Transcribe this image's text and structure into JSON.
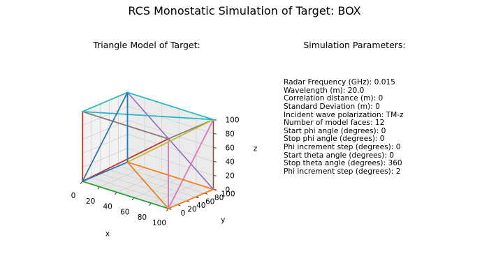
{
  "figure_title": "RCS Monostatic Simulation of Target: BOX",
  "model_panel": {
    "title": "Triangle Model of Target:"
  },
  "params_panel": {
    "title": "Simulation Parameters:",
    "lines": [
      "Radar Frequency (GHz): 0.015",
      "Wavelength (m): 20.0",
      "Correlation distance (m): 0",
      "Standard Deviation (m): 0",
      "Incident wave polarization: TM-z",
      "Number of model faces: 12",
      "Start phi angle (degrees): 0",
      "Stop phi angle (degrees): 0",
      "Phi increment step (degrees): 0",
      "Start theta angle (degrees): 0",
      "Stop theta angle (degrees): 360",
      "Phi increment step (degrees): 2"
    ]
  },
  "chart_data": {
    "type": "line3d",
    "xlabel": "x",
    "ylabel": "y",
    "zlabel": "z",
    "xlim": [
      0,
      100
    ],
    "ylim": [
      0,
      100
    ],
    "zlim": [
      0,
      100
    ],
    "xticks": [
      0,
      20,
      40,
      60,
      80,
      100
    ],
    "yticks": [
      0,
      20,
      40,
      60,
      80,
      100
    ],
    "zticks": [
      0,
      20,
      40,
      60,
      80,
      100
    ],
    "grid": true,
    "panes": "light-gray",
    "colors": [
      "#1f77b4",
      "#ff7f0e",
      "#2ca02c",
      "#d62728",
      "#9467bd",
      "#8c564b",
      "#e377c2",
      "#7f7f7f",
      "#bcbd22",
      "#17becf"
    ],
    "triangles": [
      [
        [
          0,
          0,
          0
        ],
        [
          100,
          0,
          0
        ],
        [
          0,
          100,
          0
        ]
      ],
      [
        [
          0,
          100,
          100
        ],
        [
          0,
          0,
          100
        ],
        [
          0,
          0,
          0
        ]
      ],
      [
        [
          100,
          0,
          100
        ],
        [
          100,
          0,
          0
        ],
        [
          0,
          0,
          0
        ]
      ],
      [
        [
          0,
          0,
          0
        ],
        [
          0,
          0,
          100
        ],
        [
          100,
          0,
          100
        ]
      ],
      [
        [
          100,
          100,
          0
        ],
        [
          0,
          100,
          0
        ],
        [
          0,
          100,
          100
        ]
      ],
      [
        [
          100,
          100,
          0
        ],
        [
          100,
          0,
          0
        ],
        [
          100,
          100,
          100
        ]
      ],
      [
        [
          100,
          100,
          100
        ],
        [
          100,
          0,
          0
        ],
        [
          100,
          0,
          100
        ]
      ],
      [
        [
          100,
          100,
          100
        ],
        [
          100,
          0,
          100
        ],
        [
          0,
          0,
          100
        ]
      ],
      [
        [
          100,
          100,
          100
        ],
        [
          0,
          100,
          100
        ],
        [
          0,
          100,
          0
        ]
      ],
      [
        [
          0,
          100,
          100
        ],
        [
          100,
          100,
          100
        ],
        [
          0,
          0,
          100
        ]
      ],
      [
        [
          0,
          0,
          0
        ],
        [
          0,
          100,
          0
        ],
        [
          0,
          100,
          100
        ]
      ],
      [
        [
          100,
          0,
          0
        ],
        [
          0,
          100,
          0
        ],
        [
          100,
          100,
          0
        ]
      ]
    ]
  }
}
